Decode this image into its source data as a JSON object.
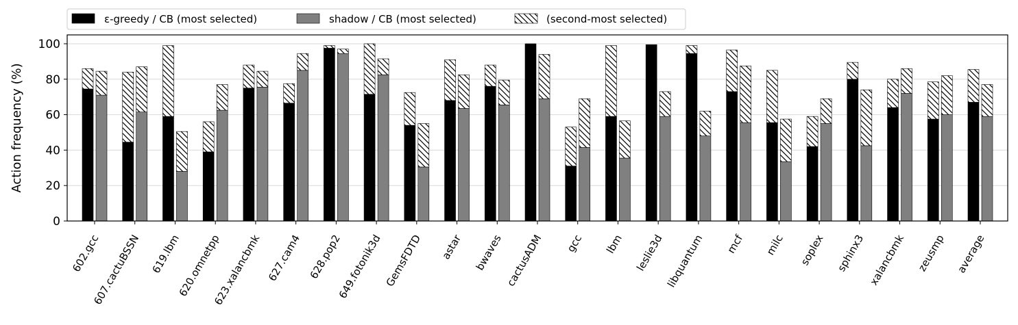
{
  "chart_data": {
    "type": "bar",
    "ylabel": "Action frequency (%)",
    "ylim": [
      0,
      105
    ],
    "yticks": [
      0,
      20,
      40,
      60,
      80,
      100
    ],
    "grid": true,
    "legend_position": "top-left",
    "categories": [
      "602.gcc",
      "607.cactuBSSN",
      "619.lbm",
      "620.omnetpp",
      "623.xalancbmk",
      "627.cam4",
      "628.pop2",
      "649.fotonik3d",
      "GemsFDTD",
      "astar",
      "bwaves",
      "cactusADM",
      "gcc",
      "lbm",
      "leslie3d",
      "libquantum",
      "mcf",
      "milc",
      "soplex",
      "sphinx3",
      "xalancbmk",
      "zeusmp",
      "average"
    ],
    "series": [
      {
        "name": "ε-greedy / CB (most selected)",
        "color": "#000000",
        "values": [
          74.5,
          44.5,
          59,
          39,
          75,
          66.5,
          97.5,
          71.5,
          54,
          68,
          76,
          100,
          31,
          59,
          99.5,
          94.5,
          73,
          55.5,
          42,
          80,
          64,
          57.5,
          67
        ],
        "second_most_selected": [
          11.5,
          39.5,
          40,
          17,
          13,
          11,
          1.5,
          28.5,
          18.5,
          23,
          12,
          0,
          22,
          40,
          0,
          4.5,
          23.5,
          29.5,
          17,
          9.5,
          16,
          21,
          18.5
        ]
      },
      {
        "name": "shadow / CB (most selected)",
        "color": "#808080",
        "values": [
          71,
          61.5,
          28,
          62.5,
          75.5,
          85,
          94.5,
          82.5,
          30.5,
          63.5,
          65.5,
          69,
          41.5,
          35.5,
          59,
          48,
          55.5,
          33.5,
          55,
          42.5,
          72,
          60,
          59
        ],
        "second_most_selected": [
          13.5,
          25.5,
          22.5,
          14.5,
          9,
          9.5,
          2.5,
          9,
          24.5,
          19,
          14,
          25,
          27.5,
          21,
          14,
          14,
          32,
          24,
          14,
          31.5,
          14,
          22,
          18
        ]
      },
      {
        "name": "(second-most selected)",
        "pattern": "hatch"
      }
    ]
  }
}
